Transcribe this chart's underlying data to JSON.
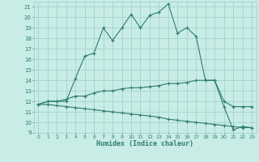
{
  "xlabel": "Humidex (Indice chaleur)",
  "bg_color": "#c8ece6",
  "line_color": "#2e7d6e",
  "grid_color": "#9ecfc7",
  "xlim": [
    -0.5,
    23.5
  ],
  "ylim": [
    9,
    21.5
  ],
  "xticks": [
    0,
    1,
    2,
    3,
    4,
    5,
    6,
    7,
    8,
    9,
    10,
    11,
    12,
    13,
    14,
    15,
    16,
    17,
    18,
    19,
    20,
    21,
    22,
    23
  ],
  "yticks": [
    9,
    10,
    11,
    12,
    13,
    14,
    15,
    16,
    17,
    18,
    19,
    20,
    21
  ],
  "line1_x": [
    0,
    1,
    2,
    3,
    4,
    5,
    6,
    7,
    8,
    9,
    10,
    11,
    12,
    13,
    14,
    15,
    16,
    17,
    18,
    19,
    20,
    21,
    22,
    23
  ],
  "line1_y": [
    11.7,
    12.0,
    12.0,
    12.0,
    14.2,
    16.3,
    16.6,
    19.0,
    17.8,
    19.0,
    20.3,
    19.0,
    20.2,
    20.5,
    21.3,
    18.5,
    19.0,
    18.2,
    14.0,
    14.0,
    11.5,
    9.3,
    9.6,
    9.5
  ],
  "line2_x": [
    0,
    1,
    2,
    3,
    4,
    5,
    6,
    7,
    8,
    9,
    10,
    11,
    12,
    13,
    14,
    15,
    16,
    17,
    18,
    19,
    20,
    21,
    22,
    23
  ],
  "line2_y": [
    11.7,
    12.0,
    12.0,
    12.2,
    12.5,
    12.5,
    12.8,
    13.0,
    13.0,
    13.2,
    13.3,
    13.3,
    13.4,
    13.5,
    13.7,
    13.7,
    13.8,
    14.0,
    14.0,
    14.0,
    12.0,
    11.5,
    11.5,
    11.5
  ],
  "line3_x": [
    0,
    1,
    2,
    3,
    4,
    5,
    6,
    7,
    8,
    9,
    10,
    11,
    12,
    13,
    14,
    15,
    16,
    17,
    18,
    19,
    20,
    21,
    22,
    23
  ],
  "line3_y": [
    11.7,
    11.7,
    11.6,
    11.5,
    11.4,
    11.3,
    11.2,
    11.1,
    11.0,
    10.9,
    10.8,
    10.7,
    10.6,
    10.5,
    10.3,
    10.2,
    10.1,
    10.0,
    9.9,
    9.8,
    9.7,
    9.6,
    9.5,
    9.5
  ],
  "figsize": [
    3.2,
    2.0
  ],
  "dpi": 100
}
